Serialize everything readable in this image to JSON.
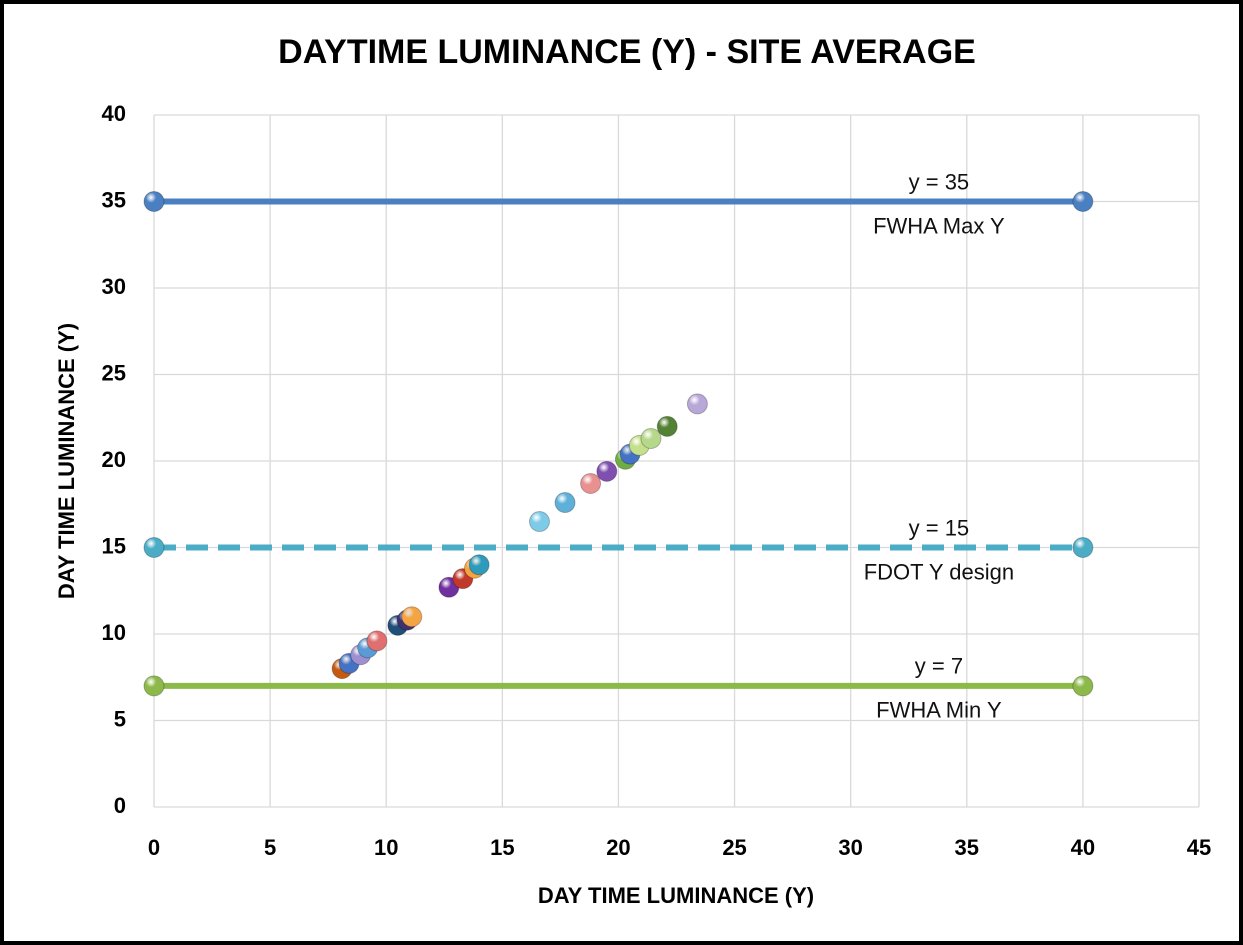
{
  "chart_data": {
    "type": "scatter",
    "title": "DAYTIME LUMINANCE (Y) - SITE AVERAGE",
    "xlabel": "DAY TIME LUMINANCE (Y)",
    "ylabel": "DAY TIME LUMINANCE (Y)",
    "xlim": [
      0,
      45
    ],
    "ylim": [
      0,
      40
    ],
    "xticks": [
      0,
      5,
      10,
      15,
      20,
      25,
      30,
      35,
      40,
      45
    ],
    "yticks": [
      0,
      5,
      10,
      15,
      20,
      25,
      30,
      35,
      40
    ],
    "grid": true,
    "series": [
      {
        "type": "scatter",
        "x": [
          8.1,
          8.4,
          8.9,
          9.2,
          9.6,
          10.5,
          10.9,
          11.1,
          12.7,
          13.3,
          13.8,
          14.0,
          16.6,
          17.7,
          18.8,
          19.5,
          20.3,
          20.5,
          20.9,
          21.4,
          22.1,
          23.4
        ],
        "values": [
          8.0,
          8.3,
          8.8,
          9.2,
          9.6,
          10.5,
          10.8,
          11.0,
          12.7,
          13.2,
          13.8,
          14.0,
          16.5,
          17.6,
          18.7,
          19.4,
          20.1,
          20.4,
          20.9,
          21.3,
          22.0,
          23.3
        ],
        "colors": [
          "#c55a11",
          "#4472c4",
          "#9e8fd0",
          "#5b9bd5",
          "#e07070",
          "#1f4e79",
          "#3f3170",
          "#f4a442",
          "#7030a0",
          "#c0392b",
          "#f4a442",
          "#2e9bbd",
          "#7ecbe8",
          "#5fb0d8",
          "#e99090",
          "#8050b0",
          "#70ad47",
          "#4472c4",
          "#c5e08a",
          "#b5d88a",
          "#548235",
          "#b8a8d8"
        ]
      },
      {
        "type": "line",
        "x": [
          0,
          40
        ],
        "values": [
          35,
          35
        ],
        "color": "#4a7fc1",
        "dashed": false,
        "labels": [
          "y = 35",
          "FWHA Max Y"
        ]
      },
      {
        "type": "line",
        "x": [
          0,
          40
        ],
        "values": [
          15,
          15
        ],
        "color": "#4bacc6",
        "dashed": true,
        "labels": [
          "y = 15",
          "FDOT Y design"
        ]
      },
      {
        "type": "line",
        "x": [
          0,
          40
        ],
        "values": [
          7,
          7
        ],
        "color": "#8db94a",
        "dashed": false,
        "labels": [
          "y = 7",
          "FWHA Min Y"
        ]
      }
    ]
  }
}
